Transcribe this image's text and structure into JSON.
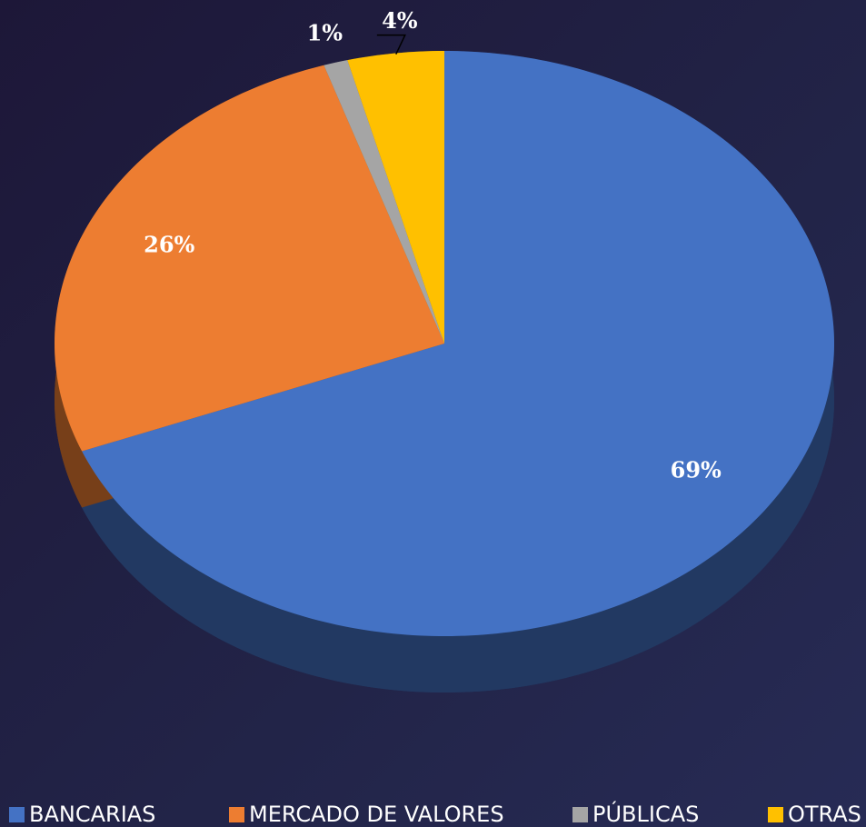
{
  "chart_data": {
    "type": "pie",
    "categories": [
      "BANCARIAS",
      "MERCADO DE VALORES",
      "PÚBLICAS",
      "OTRAS"
    ],
    "values": [
      69,
      26,
      1,
      4
    ],
    "value_labels": [
      "69%",
      "26%",
      "1%",
      "4%"
    ],
    "colors": [
      "#4472c4",
      "#ed7d31",
      "#a5a5a5",
      "#ffc000"
    ],
    "legend": "bottom"
  }
}
